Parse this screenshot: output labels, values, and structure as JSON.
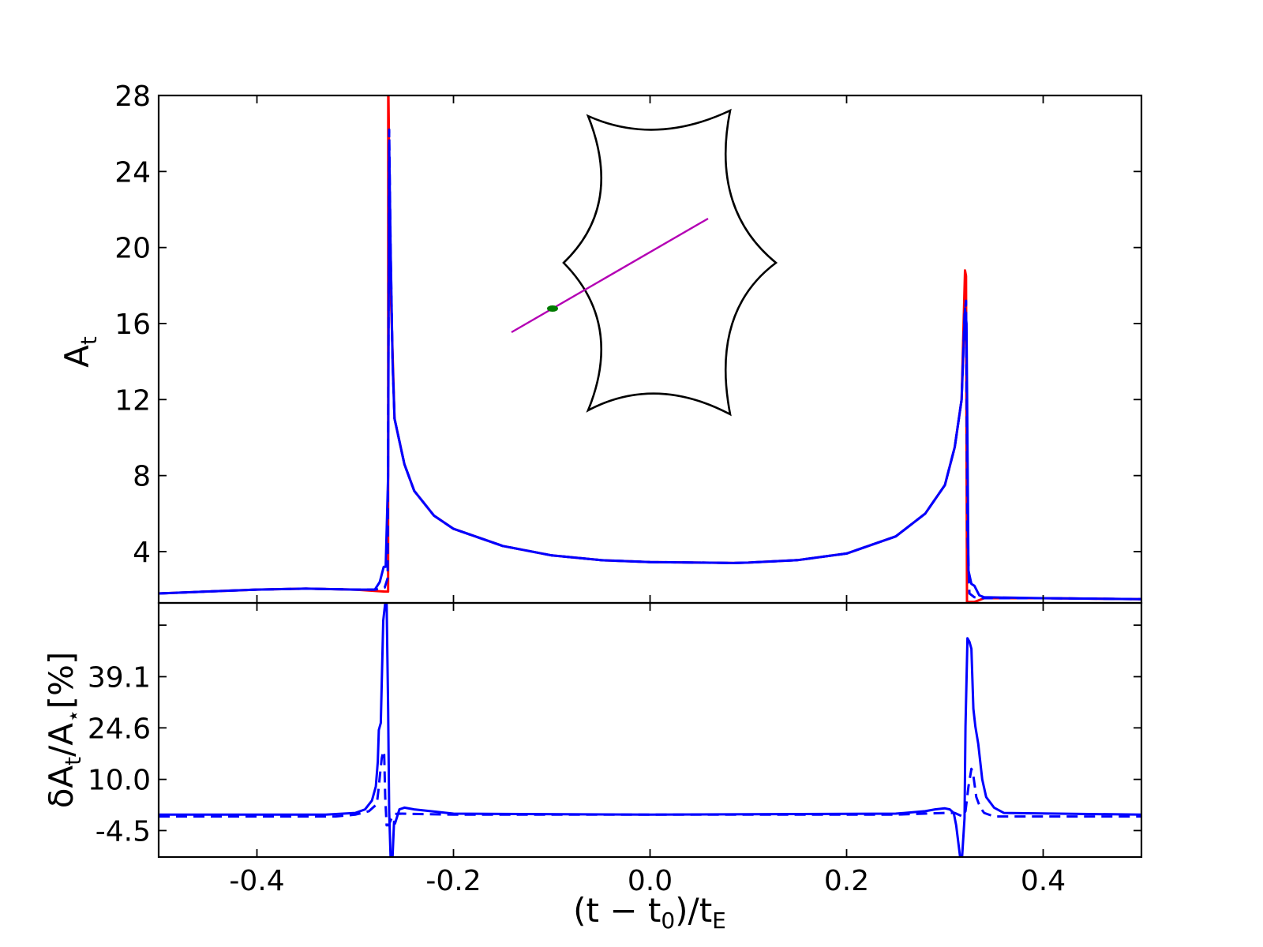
{
  "chart_data": [
    {
      "type": "line",
      "panel": "top",
      "ylabel": "A_t",
      "xlim": [
        -0.5,
        0.5
      ],
      "ylim": [
        1.3,
        28
      ],
      "yticks": [
        "4",
        "8",
        "12",
        "16",
        "20",
        "24",
        "28"
      ],
      "ytick_values": [
        4,
        8,
        12,
        16,
        20,
        24,
        28
      ],
      "series": [
        {
          "color": "#ff0000",
          "style": "solid",
          "x": [
            -0.5,
            -0.4,
            -0.35,
            -0.3,
            -0.27,
            -0.2665,
            -0.2664,
            -0.2662,
            -0.264,
            -0.26,
            -0.25,
            -0.24,
            -0.22,
            -0.2,
            -0.15,
            -0.1,
            -0.05,
            0,
            0.05,
            0.085,
            0.1,
            0.15,
            0.2,
            0.25,
            0.28,
            0.3,
            0.31,
            0.317,
            0.3205,
            0.3215,
            0.3225,
            0.3226,
            0.33,
            0.34,
            0.4,
            0.5
          ],
          "y": [
            1.8,
            2.0,
            2.05,
            2.0,
            1.9,
            1.9,
            28,
            28,
            18,
            11,
            8.6,
            7.2,
            5.9,
            5.2,
            4.3,
            3.8,
            3.55,
            3.45,
            3.42,
            3.4,
            3.42,
            3.55,
            3.9,
            4.8,
            6.0,
            7.5,
            9.5,
            12,
            18.8,
            18.5,
            1.35,
            1.35,
            1.35,
            1.55,
            1.55,
            1.5
          ]
        },
        {
          "color": "#0000ff",
          "style": "dashed",
          "x": [
            -0.5,
            -0.4,
            -0.35,
            -0.3,
            -0.28,
            -0.27,
            -0.267,
            -0.2655,
            -0.264,
            -0.262,
            -0.26,
            -0.25,
            -0.24,
            -0.22,
            -0.2,
            -0.15,
            -0.1,
            -0.05,
            0,
            0.05,
            0.085,
            0.1,
            0.15,
            0.2,
            0.25,
            0.28,
            0.3,
            0.31,
            0.317,
            0.32,
            0.3215,
            0.323,
            0.325,
            0.33,
            0.34,
            0.4,
            0.5
          ],
          "y": [
            1.8,
            2.0,
            2.05,
            2.0,
            2.0,
            2.1,
            2.6,
            26.2,
            20,
            14,
            11,
            8.6,
            7.2,
            5.9,
            5.2,
            4.3,
            3.8,
            3.55,
            3.45,
            3.42,
            3.4,
            3.42,
            3.55,
            3.9,
            4.8,
            6.0,
            7.5,
            9.5,
            12,
            16.5,
            17.2,
            5,
            1.8,
            1.6,
            1.55,
            1.55,
            1.5
          ]
        },
        {
          "color": "#0000ff",
          "style": "solid",
          "x": [
            -0.5,
            -0.4,
            -0.35,
            -0.3,
            -0.28,
            -0.275,
            -0.271,
            -0.269,
            -0.2665,
            -0.2655,
            -0.264,
            -0.262,
            -0.26,
            -0.25,
            -0.24,
            -0.22,
            -0.2,
            -0.15,
            -0.1,
            -0.05,
            0,
            0.05,
            0.085,
            0.1,
            0.15,
            0.2,
            0.25,
            0.28,
            0.3,
            0.31,
            0.317,
            0.3205,
            0.322,
            0.324,
            0.327,
            0.33,
            0.335,
            0.34,
            0.4,
            0.5
          ],
          "y": [
            1.8,
            2.0,
            2.05,
            2.0,
            2.0,
            2.4,
            3.2,
            3.2,
            8,
            25.5,
            20,
            14,
            11,
            8.6,
            7.2,
            5.9,
            5.2,
            4.3,
            3.8,
            3.55,
            3.45,
            3.42,
            3.4,
            3.42,
            3.55,
            3.9,
            4.8,
            6.0,
            7.5,
            9.5,
            12,
            16.8,
            16,
            3,
            2.3,
            2.2,
            1.7,
            1.6,
            1.55,
            1.5
          ]
        }
      ]
    },
    {
      "type": "line",
      "panel": "bottom",
      "xlabel": "(t − t₀)/t_E",
      "ylabel": "δA_t/A_⋆[%]",
      "xlim": [
        -0.5,
        0.5
      ],
      "ylim": [
        -12,
        60
      ],
      "xticks": [
        "-0.4",
        "-0.2",
        "0.0",
        "0.2",
        "0.4"
      ],
      "xtick_values": [
        -0.4,
        -0.2,
        0.0,
        0.2,
        0.4
      ],
      "yticks": [
        "-4.5",
        "10.0",
        "24.6",
        "39.1"
      ],
      "ytick_values": [
        -4.5,
        10.0,
        24.6,
        39.1
      ],
      "series": [
        {
          "color": "#0000ff",
          "style": "solid",
          "x": [
            -0.5,
            -0.33,
            -0.3,
            -0.29,
            -0.283,
            -0.279,
            -0.277,
            -0.276,
            -0.274,
            -0.2715,
            -0.2695,
            -0.268,
            -0.2665,
            -0.2655,
            -0.264,
            -0.262,
            -0.2605,
            -0.2595,
            -0.255,
            -0.25,
            -0.24,
            -0.2,
            0,
            0.25,
            0.28,
            0.29,
            0.3,
            0.305,
            0.309,
            0.3115,
            0.3155,
            0.3175,
            0.32,
            0.321,
            0.323,
            0.325,
            0.327,
            0.329,
            0.331,
            0.334,
            0.338,
            0.342,
            0.35,
            0.36,
            0.5
          ],
          "y": [
            0,
            0,
            0.5,
            1.5,
            4,
            8,
            15,
            24,
            26,
            55,
            60,
            60,
            30,
            1,
            -12,
            -12,
            -2,
            -2.5,
            1.5,
            2,
            1.5,
            0.3,
            0,
            0.3,
            1,
            1.5,
            1.8,
            1.5,
            0.5,
            -3,
            -12,
            -12,
            -1,
            25,
            50,
            49,
            47,
            30,
            25,
            20,
            10,
            5,
            2,
            0.5,
            0
          ]
        },
        {
          "color": "#0000ff",
          "style": "dashed",
          "x": [
            -0.5,
            -0.32,
            -0.3,
            -0.286,
            -0.278,
            -0.276,
            -0.2745,
            -0.273,
            -0.2715,
            -0.2705,
            -0.2695,
            -0.268,
            -0.266,
            -0.263,
            -0.26,
            -0.255,
            -0.24,
            -0.2,
            0,
            0.25,
            0.3,
            0.31,
            0.318,
            0.321,
            0.324,
            0.327,
            0.329,
            0.332,
            0.336,
            0.34,
            0.35,
            0.5
          ],
          "y": [
            -0.5,
            -0.5,
            0,
            1,
            3,
            8,
            12,
            16,
            18,
            17,
            5,
            -3,
            -3,
            -1,
            0.2,
            0.3,
            0.2,
            0,
            0,
            0,
            0.5,
            0.5,
            -0.5,
            1,
            8,
            13,
            11,
            5,
            2,
            0.5,
            -0.5,
            -0.5
          ]
        }
      ]
    }
  ],
  "inset": {
    "caustic_color": "#000000",
    "trajectory_color": "#b400b4",
    "source_color": "#007a00"
  },
  "labels": {
    "top_ylabel_main": "A",
    "top_ylabel_sub": "t",
    "bottom_ylabel_main": "δA",
    "bottom_ylabel_sub1": "t",
    "bottom_ylabel_mid": "/A",
    "bottom_ylabel_sub2": "⋆",
    "bottom_ylabel_end": "[%]",
    "xlabel_a": "(t − t",
    "xlabel_sub1": "0",
    "xlabel_b": ")/t",
    "xlabel_sub2": "E"
  }
}
